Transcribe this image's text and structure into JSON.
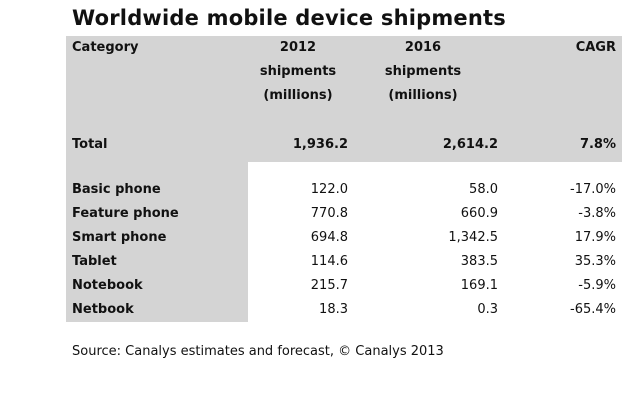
{
  "title": "Worldwide mobile device shipments",
  "header": {
    "category": "Category",
    "y2012": [
      "2012",
      "shipments",
      "(millions)"
    ],
    "y2016": [
      "2016",
      "shipments",
      "(millions)"
    ],
    "cagr": "CAGR"
  },
  "total": {
    "label": "Total",
    "y2012": "1,936.2",
    "y2016": "2,614.2",
    "cagr": "7.8%"
  },
  "rows": [
    {
      "label": "Basic phone",
      "y2012": "122.0",
      "y2016": "58.0",
      "cagr": "-17.0%"
    },
    {
      "label": "Feature phone",
      "y2012": "770.8",
      "y2016": "660.9",
      "cagr": "-3.8%"
    },
    {
      "label": "Smart phone",
      "y2012": "694.8",
      "y2016": "1,342.5",
      "cagr": "17.9%"
    },
    {
      "label": "Tablet",
      "y2012": "114.6",
      "y2016": "383.5",
      "cagr": "35.3%"
    },
    {
      "label": "Notebook",
      "y2012": "215.7",
      "y2016": "169.1",
      "cagr": "-5.9%"
    },
    {
      "label": "Netbook",
      "y2012": "18.3",
      "y2016": "0.3",
      "cagr": "-65.4%"
    }
  ],
  "source": "Source: Canalys estimates and forecast, © Canalys 2013"
}
